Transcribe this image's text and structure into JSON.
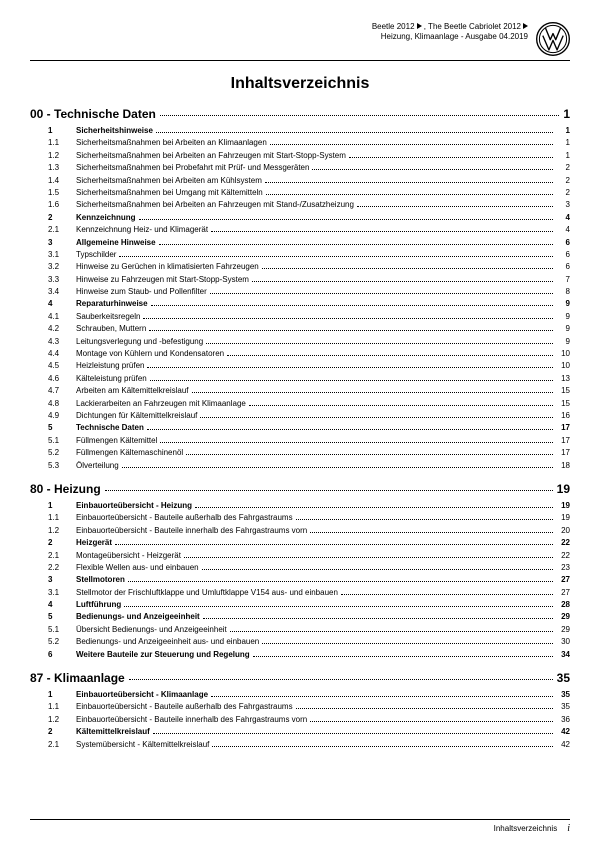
{
  "header": {
    "line1_a": "Beetle 2012",
    "line1_b": ", The Beetle Cabriolet 2012",
    "line2": "Heizung, Klimaanlage - Ausgabe 04.2019"
  },
  "title": "Inhaltsverzeichnis",
  "sections": [
    {
      "num": "00",
      "label": "Technische Daten",
      "page": "1",
      "rows": [
        {
          "n": "1",
          "t": "Sicherheitshinweise",
          "p": "1",
          "b": true
        },
        {
          "n": "1.1",
          "t": "Sicherheitsmaßnahmen bei Arbeiten an Klimaanlagen",
          "p": "1"
        },
        {
          "n": "1.2",
          "t": "Sicherheitsmaßnahmen bei Arbeiten an Fahrzeugen mit Start-Stopp-System",
          "p": "1"
        },
        {
          "n": "1.3",
          "t": "Sicherheitsmaßnahmen bei Probefahrt mit Prüf- und Messgeräten",
          "p": "2"
        },
        {
          "n": "1.4",
          "t": "Sicherheitsmaßnahmen bei Arbeiten am Kühlsystem",
          "p": "2"
        },
        {
          "n": "1.5",
          "t": "Sicherheitsmaßnahmen bei Umgang mit Kältemitteln",
          "p": "2"
        },
        {
          "n": "1.6",
          "t": "Sicherheitsmaßnahmen bei Arbeiten an Fahrzeugen mit Stand-/Zusatzheizung",
          "p": "3"
        },
        {
          "n": "2",
          "t": "Kennzeichnung",
          "p": "4",
          "b": true
        },
        {
          "n": "2.1",
          "t": "Kennzeichnung Heiz- und Klimagerät",
          "p": "4"
        },
        {
          "n": "3",
          "t": "Allgemeine Hinweise",
          "p": "6",
          "b": true
        },
        {
          "n": "3.1",
          "t": "Typschilder",
          "p": "6"
        },
        {
          "n": "3.2",
          "t": "Hinweise zu Gerüchen in klimatisierten Fahrzeugen",
          "p": "6"
        },
        {
          "n": "3.3",
          "t": "Hinweise zu Fahrzeugen mit Start-Stopp-System",
          "p": "7"
        },
        {
          "n": "3.4",
          "t": "Hinweise zum Staub- und Pollenfilter",
          "p": "8"
        },
        {
          "n": "4",
          "t": "Reparaturhinweise",
          "p": "9",
          "b": true
        },
        {
          "n": "4.1",
          "t": "Sauberkeitsregeln",
          "p": "9"
        },
        {
          "n": "4.2",
          "t": "Schrauben, Muttern",
          "p": "9"
        },
        {
          "n": "4.3",
          "t": "Leitungsverlegung und -befestigung",
          "p": "9"
        },
        {
          "n": "4.4",
          "t": "Montage von Kühlern und Kondensatoren",
          "p": "10"
        },
        {
          "n": "4.5",
          "t": "Heizleistung prüfen",
          "p": "10"
        },
        {
          "n": "4.6",
          "t": "Kälteleistung prüfen",
          "p": "13"
        },
        {
          "n": "4.7",
          "t": "Arbeiten am Kältemittelkreislauf",
          "p": "15"
        },
        {
          "n": "4.8",
          "t": "Lackierarbeiten an Fahrzeugen mit Klimaanlage",
          "p": "15"
        },
        {
          "n": "4.9",
          "t": "Dichtungen für Kältemittelkreislauf",
          "p": "16"
        },
        {
          "n": "5",
          "t": "Technische Daten",
          "p": "17",
          "b": true
        },
        {
          "n": "5.1",
          "t": "Füllmengen Kältemittel",
          "p": "17"
        },
        {
          "n": "5.2",
          "t": "Füllmengen Kältemaschinenöl",
          "p": "17"
        },
        {
          "n": "5.3",
          "t": "Ölverteilung",
          "p": "18"
        }
      ]
    },
    {
      "num": "80",
      "label": "Heizung",
      "page": "19",
      "rows": [
        {
          "n": "1",
          "t": "Einbauorteübersicht - Heizung",
          "p": "19",
          "b": true
        },
        {
          "n": "1.1",
          "t": "Einbauorteübersicht - Bauteile außerhalb des Fahrgastraums",
          "p": "19"
        },
        {
          "n": "1.2",
          "t": "Einbauorteübersicht - Bauteile innerhalb des Fahrgastraums vorn",
          "p": "20"
        },
        {
          "n": "2",
          "t": "Heizgerät",
          "p": "22",
          "b": true
        },
        {
          "n": "2.1",
          "t": "Montageübersicht - Heizgerät",
          "p": "22"
        },
        {
          "n": "2.2",
          "t": "Flexible Wellen aus- und einbauen",
          "p": "23"
        },
        {
          "n": "3",
          "t": "Stellmotoren",
          "p": "27",
          "b": true
        },
        {
          "n": "3.1",
          "t": "Stellmotor der Frischluftklappe und Umluftklappe V154 aus- und einbauen",
          "p": "27"
        },
        {
          "n": "4",
          "t": "Luftführung",
          "p": "28",
          "b": true
        },
        {
          "n": "5",
          "t": "Bedienungs- und Anzeigeeinheit",
          "p": "29",
          "b": true
        },
        {
          "n": "5.1",
          "t": "Übersicht Bedienungs- und Anzeigeeinheit",
          "p": "29"
        },
        {
          "n": "5.2",
          "t": "Bedienungs- und Anzeigeeinheit aus- und einbauen",
          "p": "30"
        },
        {
          "n": "6",
          "t": "Weitere Bauteile zur Steuerung und Regelung",
          "p": "34",
          "b": true
        }
      ]
    },
    {
      "num": "87",
      "label": "Klimaanlage",
      "page": "35",
      "rows": [
        {
          "n": "1",
          "t": "Einbauorteübersicht - Klimaanlage",
          "p": "35",
          "b": true
        },
        {
          "n": "1.1",
          "t": "Einbauorteübersicht - Bauteile außerhalb des Fahrgastraums",
          "p": "35"
        },
        {
          "n": "1.2",
          "t": "Einbauorteübersicht - Bauteile innerhalb des Fahrgastraums vorn",
          "p": "36"
        },
        {
          "n": "2",
          "t": "Kältemittelkreislauf",
          "p": "42",
          "b": true
        },
        {
          "n": "2.1",
          "t": "Systemübersicht - Kältemittelkreislauf",
          "p": "42"
        }
      ]
    }
  ],
  "footer": {
    "label": "Inhaltsverzeichnis",
    "page": "i"
  }
}
